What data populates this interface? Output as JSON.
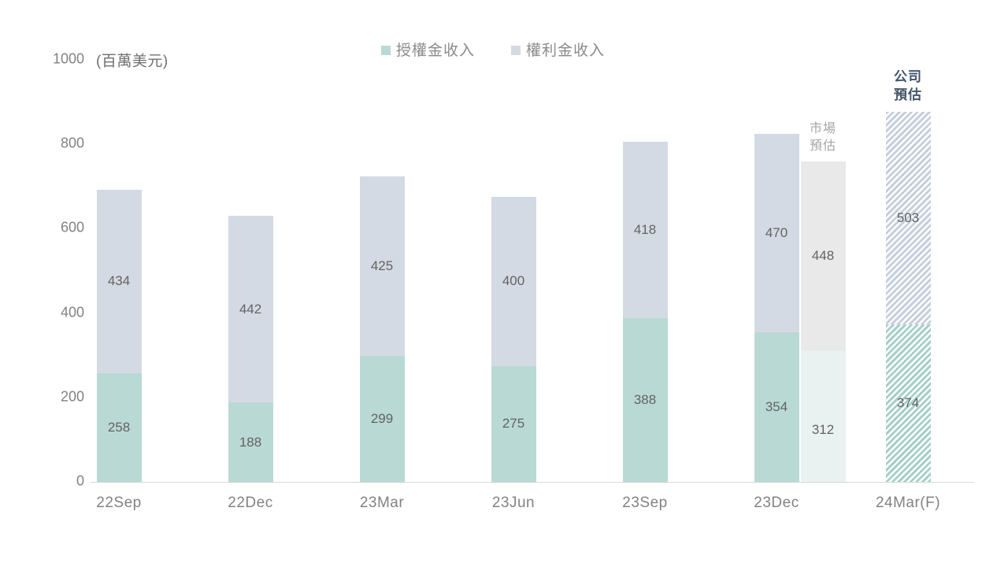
{
  "chart_data": {
    "type": "bar",
    "stacked": true,
    "title": "",
    "ylabel": "(百萬美元)",
    "xlabel": "",
    "ylim": [
      0,
      1000
    ],
    "yticks": [
      0,
      200,
      400,
      600,
      800,
      1000
    ],
    "grid": false,
    "legend_position": "top",
    "categories": [
      "22Sep",
      "22Dec",
      "23Mar",
      "23Jun",
      "23Sep",
      "23Dec",
      "24Mar(F)"
    ],
    "series": [
      {
        "name": "授權金收入",
        "color": "#b9d9d4",
        "hatch_color": "#a6d0c8",
        "values": [
          258,
          188,
          299,
          275,
          388,
          354,
          374
        ]
      },
      {
        "name": "權利金收入",
        "color": "#d4dae3",
        "hatch_color": "#c6cfde",
        "values": [
          434,
          442,
          425,
          400,
          418,
          470,
          503
        ]
      }
    ],
    "forecast": {
      "category": "24Mar(F)",
      "label": "公司\n預估",
      "label_color": "#44546a",
      "hatched": true
    },
    "market_estimate": {
      "category": "23Dec",
      "label": "市場\n預估",
      "label_color": "#a5a5a5",
      "series": [
        {
          "name": "授權金收入",
          "value": 312,
          "color": "#e9f2f0"
        },
        {
          "name": "權利金收入",
          "value": 448,
          "color": "#e9e9e9"
        }
      ]
    }
  }
}
